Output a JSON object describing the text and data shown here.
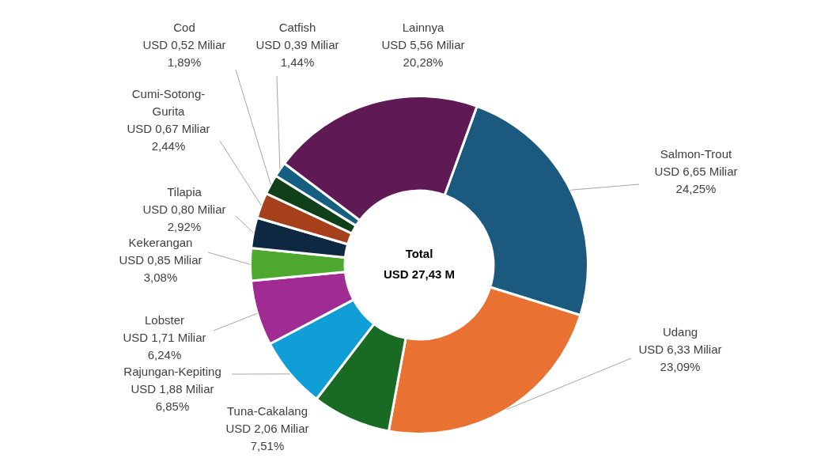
{
  "chart_data": {
    "type": "donut",
    "categories": [
      "Salmon-Trout",
      "Udang",
      "Tuna-Cakalang",
      "Rajungan-Kepiting",
      "Lobster",
      "Kekerangan",
      "Tilapia",
      "Cumi-Sotong-Gurita",
      "Cod",
      "Catfish",
      "Lainnya"
    ],
    "values": [
      6.65,
      6.33,
      2.06,
      1.88,
      1.71,
      0.85,
      0.8,
      0.67,
      0.52,
      0.39,
      5.56
    ],
    "value_labels": [
      "USD 6,65 Miliar\n24,25%",
      "USD 6,33 Miliar\n23,09%",
      "USD 2,06 Miliar\n7,51%",
      "USD 1,88 Miliar\n6,85%",
      "USD 1,71 Miliar\n6,24%",
      "USD 0,85 Miliar\n3,08%",
      "USD 0,80 Miliar\n2,92%",
      "USD 0,67 Miliar\n2,44%",
      "USD 0,52 Miliar\n1,89%",
      "USD 0,39 Miliar\n1,44%",
      "USD 5,56 Miliar\n20,28%"
    ],
    "colors": [
      "#1b5a7e",
      "#e97132",
      "#196b24",
      "#0f9ed5",
      "#a02b93",
      "#4ea72e",
      "#0e2841",
      "#a5401a",
      "#10401a",
      "#156082",
      "#5f1a55"
    ],
    "annotations": [
      "Total\nUSD 27,43 M"
    ],
    "legend": false
  }
}
